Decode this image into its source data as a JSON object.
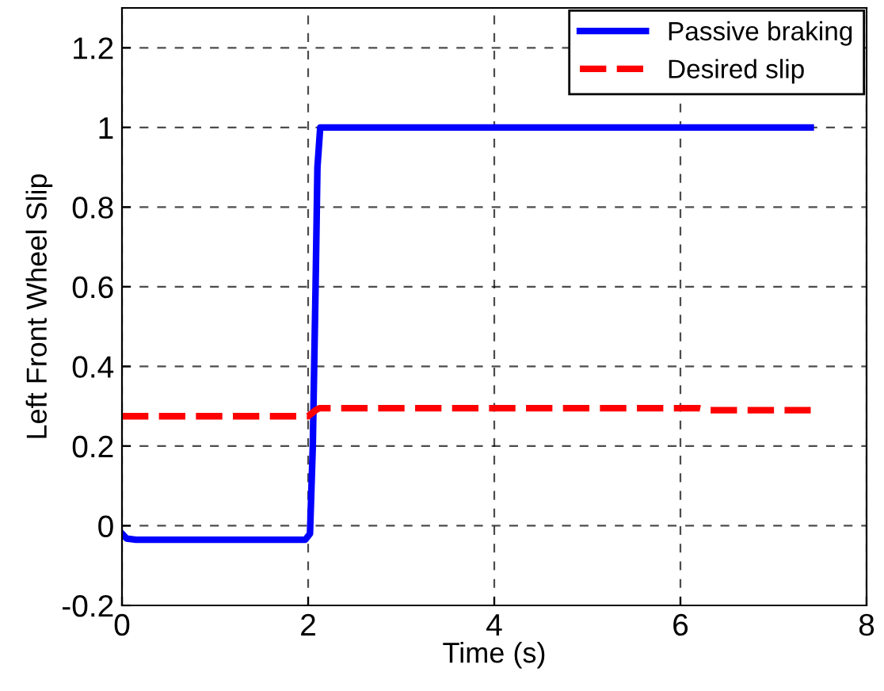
{
  "chart_data": {
    "type": "line",
    "xlabel": "Time (s)",
    "ylabel": "Left Front Wheel Slip",
    "xlim": [
      0,
      8
    ],
    "ylim": [
      -0.2,
      1.3
    ],
    "xticks": [
      0,
      2,
      4,
      6,
      8
    ],
    "yticks": [
      -0.2,
      0,
      0.2,
      0.4,
      0.6,
      0.8,
      1,
      1.2
    ],
    "grid": true,
    "legend": "top right",
    "series": [
      {
        "name": "Passive braking",
        "color": "#0000ff",
        "line_style": "solid",
        "x": [
          0,
          0.05,
          0.15,
          1,
          1.97,
          2.02,
          2.05,
          2.08,
          2.1,
          2.13,
          3,
          5,
          7.4
        ],
        "values": [
          -0.02,
          -0.032,
          -0.035,
          -0.035,
          -0.035,
          -0.02,
          0.2,
          0.6,
          0.9,
          1,
          1,
          1,
          1
        ]
      },
      {
        "name": "Desired slip",
        "color": "#ff0000",
        "line_style": "dashed",
        "x": [
          0,
          1,
          2.0,
          2.08,
          2.12,
          4,
          6.2,
          6.3,
          7.4
        ],
        "values": [
          0.275,
          0.275,
          0.275,
          0.29,
          0.295,
          0.295,
          0.295,
          0.29,
          0.29
        ]
      }
    ]
  }
}
